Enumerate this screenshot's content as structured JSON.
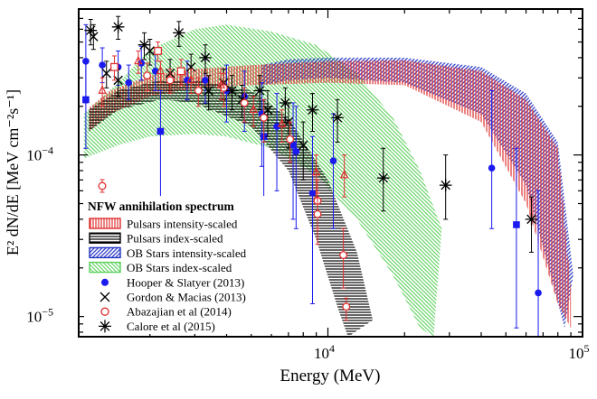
{
  "chart_data": {
    "type": "scatter",
    "title": "",
    "xlabel": "Energy (MeV)",
    "ylabel": "E² dN/dE [MeV cm⁻²s⁻¹]",
    "xscale": "log",
    "yscale": "log",
    "xlim": [
      1050,
      100000
    ],
    "ylim": [
      7.5e-06,
      0.0008
    ],
    "grid": false,
    "legend_position": "lower-left",
    "x_ticks": [
      {
        "value": 10000,
        "label": "10",
        "sup": "4"
      },
      {
        "value": 100000,
        "label": "10",
        "sup": "5"
      }
    ],
    "y_ticks": [
      {
        "value": 1e-05,
        "label": "10",
        "sup": "−5"
      },
      {
        "value": 0.0001,
        "label": "10",
        "sup": "−4"
      }
    ],
    "legend_title": "NFW annihilation spectrum",
    "bands": [
      {
        "name": "Pulsars intensity-scaled",
        "color": "#e03030",
        "hatch": "vertical",
        "upper": [
          [
            1150,
            0.000195
          ],
          [
            1400,
            0.00025
          ],
          [
            2000,
            0.00031
          ],
          [
            3000,
            0.00034
          ],
          [
            5000,
            0.00036
          ],
          [
            10000,
            0.00038
          ],
          [
            20000,
            0.000385
          ],
          [
            40000,
            0.00033
          ],
          [
            60000,
            0.00022
          ],
          [
            80000,
            0.00011
          ],
          [
            90000,
            1.5e-05
          ]
        ],
        "lower": [
          [
            1150,
            0.00014
          ],
          [
            1400,
            0.00018
          ],
          [
            2000,
            0.00023
          ],
          [
            3000,
            0.00026
          ],
          [
            5000,
            0.00027
          ],
          [
            10000,
            0.00028
          ],
          [
            20000,
            0.00027
          ],
          [
            40000,
            0.00016
          ],
          [
            60000,
            5e-05
          ],
          [
            80000,
            1.2e-05
          ],
          [
            90000,
            8.5e-06
          ]
        ]
      },
      {
        "name": "Pulsars index-scaled",
        "color": "#000000",
        "hatch": "horizontal",
        "upper": [
          [
            1150,
            0.00019
          ],
          [
            1500,
            0.00025
          ],
          [
            2200,
            0.00029
          ],
          [
            3000,
            0.00029
          ],
          [
            5000,
            0.00025
          ],
          [
            7000,
            0.00017
          ],
          [
            10000,
            7e-05
          ],
          [
            13000,
            2.5e-05
          ],
          [
            15000,
            9.5e-06
          ]
        ],
        "lower": [
          [
            1150,
            0.00014
          ],
          [
            1500,
            0.00019
          ],
          [
            2200,
            0.00022
          ],
          [
            3000,
            0.00021
          ],
          [
            5000,
            0.00015
          ],
          [
            7000,
            8e-05
          ],
          [
            9000,
            3e-05
          ],
          [
            11000,
            1.1e-05
          ],
          [
            12000,
            7.5e-06
          ]
        ]
      },
      {
        "name": "OB Stars intensity-scaled",
        "color": "#2030c0",
        "hatch": "diagonal",
        "upper": [
          [
            5500,
            0.00036
          ],
          [
            7000,
            0.00039
          ],
          [
            10000,
            0.0004
          ],
          [
            20000,
            0.0004
          ],
          [
            40000,
            0.00035
          ],
          [
            60000,
            0.00024
          ],
          [
            80000,
            0.00012
          ],
          [
            92000,
            1.8e-05
          ]
        ],
        "lower": [
          [
            5500,
            0.00027
          ],
          [
            7000,
            0.00029
          ],
          [
            10000,
            0.0003
          ],
          [
            20000,
            0.00028
          ],
          [
            40000,
            0.00018
          ],
          [
            60000,
            6.5e-05
          ],
          [
            75000,
            1.8e-05
          ],
          [
            85000,
            8.5e-06
          ]
        ]
      },
      {
        "name": "OB Stars index-scaled",
        "color": "#5ccf5c",
        "hatch": "diagonal",
        "upper": [
          [
            1100,
            0.00018
          ],
          [
            1500,
            0.00028
          ],
          [
            2000,
            0.00045
          ],
          [
            3000,
            0.0006
          ],
          [
            4000,
            0.00064
          ],
          [
            6000,
            0.00058
          ],
          [
            9000,
            0.00048
          ],
          [
            13000,
            0.00032
          ],
          [
            18000,
            0.00017
          ],
          [
            23000,
            8e-05
          ],
          [
            28000,
            3.5e-05
          ]
        ],
        "lower": [
          [
            1100,
            9.5e-05
          ],
          [
            1500,
            0.000115
          ],
          [
            2000,
            0.00013
          ],
          [
            3000,
            0.000135
          ],
          [
            4000,
            0.00013
          ],
          [
            6000,
            0.00011
          ],
          [
            9000,
            7.5e-05
          ],
          [
            13000,
            4e-05
          ],
          [
            18000,
            1.8e-05
          ],
          [
            23000,
            8.5e-06
          ],
          [
            26000,
            7.5e-06
          ]
        ]
      }
    ],
    "series": [
      {
        "name": "Hooper & Slatyer (2013)",
        "marker": "filled-circle",
        "color": "#1a1aee",
        "points": [
          [
            1120,
            0.00038,
            0.00021,
            0.00064
          ],
          [
            1300,
            0.00036,
            0.00028,
            0.00046
          ],
          [
            1500,
            0.00035,
            0.00027,
            0.00044
          ],
          [
            1650,
            0.00028,
            0.00022,
            0.00036
          ],
          [
            1850,
            0.00037,
            0.00029,
            0.00047
          ],
          [
            2100,
            0.00033,
            0.00025,
            0.00043
          ],
          [
            2800,
            0.00029,
            0.00022,
            0.00038
          ],
          [
            3300,
            0.00029,
            0.00021,
            0.00039
          ],
          [
            4000,
            0.00025,
            0.00016,
            0.00036
          ],
          [
            4700,
            0.00023,
            0.00014,
            0.00033
          ],
          [
            5500,
            0.00018,
            8.5e-05,
            0.00028
          ],
          [
            6300,
            0.00015,
            6e-05,
            0.00024
          ],
          [
            7500,
            0.000105,
            3.5e-05,
            0.0002
          ],
          [
            8700,
            5.8e-05,
            1.2e-05,
            0.00013
          ],
          [
            10500,
            9.2e-05,
            3.5e-05,
            0.00018
          ],
          [
            44000,
            8.3e-05,
            3.5e-05,
            0.00025
          ],
          [
            67000,
            1.4e-05,
            7.5e-06,
            6e-05
          ]
        ]
      },
      {
        "name": "Hooper & Slatyer (2013) squares",
        "marker": "filled-square",
        "color": "#1a1aee",
        "points": [
          [
            1120,
            0.00022,
            0.00011,
            0.00038
          ],
          [
            2200,
            0.00014,
            4.5e-05,
            0.00025
          ],
          [
            5600,
            0.00013,
            5.5e-05,
            0.00022
          ],
          [
            7300,
            0.000115,
            4e-05,
            0.00021
          ],
          [
            55000,
            3.7e-05,
            8.5e-06,
            0.00011
          ]
        ]
      },
      {
        "name": "Gordon & Macias (2013)",
        "marker": "x-cross",
        "color": "#000000",
        "points": [
          [
            1200,
            0.00054,
            0.00045,
            0.00064
          ],
          [
            1350,
            0.00032,
            0.00026,
            0.00038
          ],
          [
            1500,
            0.00029,
            0.00023,
            0.00034
          ],
          [
            2000,
            0.00044,
            0.00036,
            0.00052
          ],
          [
            2400,
            0.00032,
            0.00025,
            0.00039
          ],
          [
            2900,
            0.00035,
            0.00028,
            0.00042
          ],
          [
            3400,
            0.00025,
            0.00019,
            0.00031
          ],
          [
            3900,
            0.00028,
            0.00022,
            0.00034
          ],
          [
            4600,
            0.00022,
            0.00017,
            0.00027
          ],
          [
            5800,
            0.00019,
            0.00013,
            0.00025
          ],
          [
            7000,
            0.00016,
            0.00011,
            0.00021
          ],
          [
            8000,
            0.000115,
            7e-05,
            0.00016
          ]
        ]
      },
      {
        "name": "Abazajian et al (2014)",
        "marker": "open-circle",
        "color": "#e03030",
        "points": [
          [
            1950,
            0.00031,
            0.00025,
            0.00037
          ],
          [
            2400,
            0.00029,
            0.00024,
            0.00034
          ],
          [
            3100,
            0.00025,
            0.0002,
            0.0003
          ],
          [
            3900,
            0.00026,
            0.0002,
            0.00032
          ],
          [
            4700,
            0.00021,
            0.00016,
            0.00026
          ],
          [
            5600,
            0.00017,
            0.00012,
            0.00022
          ],
          [
            7100,
            0.000125,
            9e-05,
            0.00016
          ],
          [
            9100,
            5.2e-05,
            3.5e-05,
            7e-05
          ],
          [
            9100,
            4.3e-05,
            2.8e-05,
            5.8e-05
          ],
          [
            11500,
            2.4e-05,
            1.5e-05,
            3.5e-05
          ],
          [
            11800,
            1.15e-05,
            9.5e-06,
            1.3e-05
          ]
        ]
      },
      {
        "name": "Abazajian et al (2014) squares",
        "marker": "open-square",
        "color": "#e03030",
        "points": [
          [
            1450,
            0.00035,
            0.00029,
            0.00041
          ],
          [
            2150,
            0.00044,
            0.00038,
            0.0005
          ],
          [
            2650,
            0.00033,
            0.00027,
            0.00039
          ]
        ]
      },
      {
        "name": "Abazajian et al (2014) triangles",
        "marker": "open-triangle",
        "color": "#e03030",
        "points": [
          [
            1300,
            0.00025,
            0.0002,
            0.0003
          ],
          [
            1800,
            0.00038,
            0.00032,
            0.00044
          ],
          [
            2200,
            0.00033,
            0.00028,
            0.00038
          ],
          [
            2900,
            0.00029,
            0.00024,
            0.00034
          ],
          [
            3800,
            0.00027,
            0.00022,
            0.00032
          ],
          [
            5100,
            0.00019,
            0.00015,
            0.00023
          ],
          [
            6600,
            0.000155,
            0.00012,
            0.00019
          ],
          [
            9000,
            7.8e-05,
            5.5e-05,
            0.0001
          ],
          [
            11600,
            7.5e-05,
            5.5e-05,
            0.0001
          ]
        ]
      },
      {
        "name": "Calore et al (2015)",
        "marker": "asterisk",
        "color": "#000000",
        "points": [
          [
            1170,
            0.00059,
            0.00048,
            0.00069
          ],
          [
            1500,
            0.00062,
            0.00052,
            0.00072
          ],
          [
            1900,
            0.00048,
            0.00039,
            0.00057
          ],
          [
            2600,
            0.00057,
            0.00047,
            0.00067
          ],
          [
            3300,
            0.0004,
            0.00032,
            0.00048
          ],
          [
            4200,
            0.00025,
            0.00019,
            0.00031
          ],
          [
            5400,
            0.00025,
            0.00019,
            0.00031
          ],
          [
            6800,
            0.00021,
            0.00016,
            0.00026
          ],
          [
            8700,
            0.00019,
            0.00014,
            0.00024
          ],
          [
            10900,
            0.00017,
            0.00012,
            0.00022
          ],
          [
            16500,
            7.2e-05,
            4.5e-05,
            0.00011
          ],
          [
            29000,
            6.5e-05,
            4e-05,
            0.0001
          ],
          [
            63000,
            4e-05,
            2.5e-05,
            5.5e-05
          ]
        ]
      }
    ],
    "legend": [
      {
        "label": "Pulsars intensity-scaled",
        "kind": "band",
        "color": "#e03030",
        "hatch": "vertical"
      },
      {
        "label": "Pulsars index-scaled",
        "kind": "band",
        "color": "#000000",
        "hatch": "horizontal"
      },
      {
        "label": "OB Stars intensity-scaled",
        "kind": "band",
        "color": "#2030c0",
        "hatch": "diagonal"
      },
      {
        "label": "OB Stars index-scaled",
        "kind": "band",
        "color": "#5ccf5c",
        "hatch": "diagonal"
      },
      {
        "label": "Hooper & Slatyer (2013)",
        "kind": "marker",
        "marker": "filled-circle",
        "color": "#1a1aee"
      },
      {
        "label": "Gordon & Macias (2013)",
        "kind": "marker",
        "marker": "x-cross",
        "color": "#000000"
      },
      {
        "label": "Abazajian et al (2014)",
        "kind": "marker",
        "marker": "open-circle",
        "color": "#e03030"
      },
      {
        "label": "Calore et al (2015)",
        "kind": "marker",
        "marker": "asterisk",
        "color": "#000000"
      }
    ]
  }
}
